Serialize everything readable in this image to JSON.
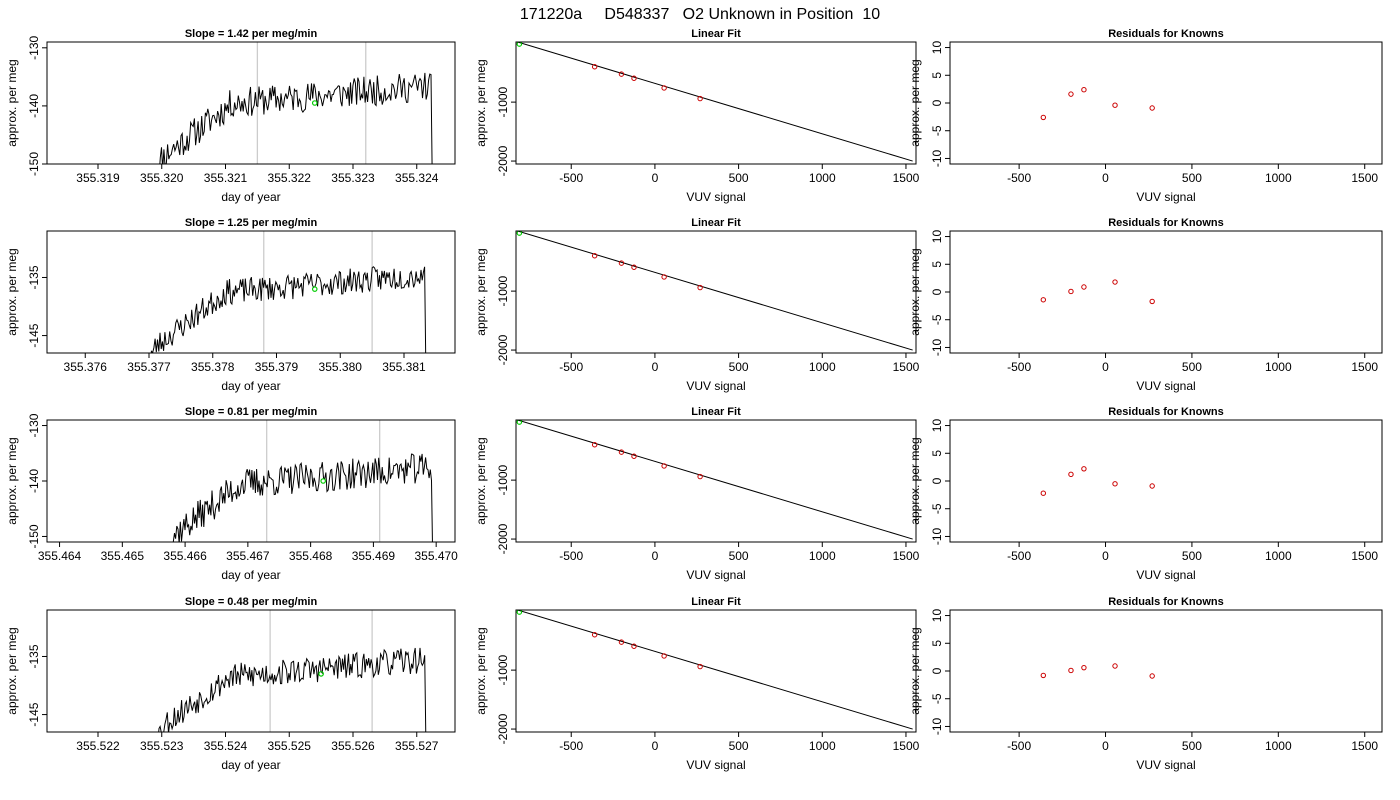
{
  "figure_title": "171220a     D548337   O2 Unknown in Position  10",
  "colors": {
    "axis": "#000000",
    "marker_line": "#cccccc",
    "unknown_point": "#00cc00",
    "known_point": "#cc0000",
    "series": "#000000"
  },
  "chart_data": [
    {
      "type": "line",
      "row": 1,
      "title": "Slope =  1.42  per meg/min",
      "xlabel": "day of year",
      "ylabel": "approx. per meg",
      "xlim": [
        355.3182,
        355.3246
      ],
      "ylim": [
        -150,
        -129
      ],
      "xticks": [
        "355.319",
        "355.320",
        "355.321",
        "355.322",
        "355.323",
        "355.324"
      ],
      "xtick_values": [
        355.319,
        355.32,
        355.321,
        355.322,
        355.323,
        355.324
      ],
      "yticks": [
        "-150",
        "-140",
        "-130"
      ],
      "ytick_values": [
        -150,
        -140,
        -130
      ],
      "vlines": [
        355.3215,
        355.3232
      ],
      "trace": {
        "x_start": 355.3199,
        "x_end": 355.3243,
        "y_start": -150,
        "level": -138,
        "noise": 2.6,
        "seed": 11
      },
      "unknown_point": {
        "x": 355.3224,
        "y": -139.5
      }
    },
    {
      "type": "scatter",
      "row": 1,
      "title": "Linear Fit",
      "xlabel": "VUV signal",
      "ylabel": "approx. per meg",
      "xlim": [
        -830,
        1560
      ],
      "ylim": [
        -2050,
        20
      ],
      "xticks": [
        "-500",
        "0",
        "500",
        "1000",
        "1500"
      ],
      "xtick_values": [
        -500,
        0,
        500,
        1000,
        1500
      ],
      "yticks": [
        "-2000",
        "-1000"
      ],
      "ytick_values": [
        -2000,
        -1000
      ],
      "fit_line": {
        "x": [
          -820,
          1540
        ],
        "y": [
          20,
          -2000
        ]
      },
      "unknown_point": {
        "x": -810,
        "y": -15
      },
      "known_points": {
        "x": [
          -360,
          -200,
          -125,
          55,
          270
        ],
        "y": [
          -400,
          -525,
          -595,
          -760,
          -940
        ]
      }
    },
    {
      "type": "scatter",
      "row": 1,
      "title": "Residuals for Knowns",
      "xlabel": "VUV signal",
      "ylabel": "approx. per meg",
      "xlim": [
        -900,
        1600
      ],
      "ylim": [
        -11,
        11
      ],
      "xticks": [
        "-500",
        "0",
        "500",
        "1000",
        "1500"
      ],
      "xtick_values": [
        -500,
        0,
        500,
        1000,
        1500
      ],
      "yticks": [
        "-10",
        "-5",
        "0",
        "5",
        "10"
      ],
      "ytick_values": [
        -10,
        -5,
        0,
        5,
        10
      ],
      "known_points": {
        "x": [
          -360,
          -200,
          -125,
          55,
          270
        ],
        "y": [
          -2.6,
          1.6,
          2.4,
          -0.4,
          -0.9
        ]
      }
    },
    {
      "type": "line",
      "row": 2,
      "title": "Slope =  1.25  per meg/min",
      "xlabel": "day of year",
      "ylabel": "approx. per meg",
      "xlim": [
        355.3754,
        355.3818
      ],
      "ylim": [
        -148,
        -127
      ],
      "xticks": [
        "355.376",
        "355.377",
        "355.378",
        "355.379",
        "355.380",
        "355.381"
      ],
      "xtick_values": [
        355.376,
        355.377,
        355.378,
        355.379,
        355.38,
        355.381
      ],
      "yticks": [
        "-145",
        "-135"
      ],
      "ytick_values": [
        -145,
        -135
      ],
      "vlines": [
        355.3788,
        355.3805
      ],
      "trace": {
        "x_start": 355.377,
        "x_end": 355.3814,
        "y_start": -148,
        "level": -136,
        "noise": 2.2,
        "seed": 23
      },
      "unknown_point": {
        "x": 355.3796,
        "y": -137
      }
    },
    {
      "type": "scatter",
      "row": 2,
      "title": "Linear Fit",
      "xlabel": "VUV signal",
      "ylabel": "approx. per meg",
      "xlim": [
        -830,
        1560
      ],
      "ylim": [
        -2050,
        20
      ],
      "xticks": [
        "-500",
        "0",
        "500",
        "1000",
        "1500"
      ],
      "xtick_values": [
        -500,
        0,
        500,
        1000,
        1500
      ],
      "yticks": [
        "-2000",
        "-1000"
      ],
      "ytick_values": [
        -2000,
        -1000
      ],
      "fit_line": {
        "x": [
          -820,
          1540
        ],
        "y": [
          20,
          -2000
        ]
      },
      "unknown_point": {
        "x": -810,
        "y": -15
      },
      "known_points": {
        "x": [
          -360,
          -200,
          -125,
          55,
          270
        ],
        "y": [
          -400,
          -525,
          -595,
          -760,
          -940
        ]
      }
    },
    {
      "type": "scatter",
      "row": 2,
      "title": "Residuals for Knowns",
      "xlabel": "VUV signal",
      "ylabel": "approx. per meg",
      "xlim": [
        -900,
        1600
      ],
      "ylim": [
        -11,
        11
      ],
      "xticks": [
        "-500",
        "0",
        "500",
        "1000",
        "1500"
      ],
      "xtick_values": [
        -500,
        0,
        500,
        1000,
        1500
      ],
      "yticks": [
        "-10",
        "-5",
        "0",
        "5",
        "10"
      ],
      "ytick_values": [
        -10,
        -5,
        0,
        5,
        10
      ],
      "known_points": {
        "x": [
          -360,
          -200,
          -125,
          55,
          270
        ],
        "y": [
          -1.4,
          0.1,
          0.9,
          1.8,
          -1.7
        ]
      }
    },
    {
      "type": "line",
      "row": 3,
      "title": "Slope =  0.81  per meg/min",
      "xlabel": "day of year",
      "ylabel": "approx. per meg",
      "xlim": [
        355.4638,
        355.4703
      ],
      "ylim": [
        -151,
        -129
      ],
      "xticks": [
        "355.464",
        "355.465",
        "355.466",
        "355.467",
        "355.468",
        "355.469",
        "355.470"
      ],
      "xtick_values": [
        355.464,
        355.465,
        355.466,
        355.467,
        355.468,
        355.469,
        355.47
      ],
      "yticks": [
        "-150",
        "-140",
        "-130"
      ],
      "ytick_values": [
        -150,
        -140,
        -130
      ],
      "vlines": [
        355.4673,
        355.4691
      ],
      "trace": {
        "x_start": 355.4657,
        "x_end": 355.47,
        "y_start": -151,
        "level": -139,
        "noise": 2.8,
        "seed": 37
      },
      "unknown_point": {
        "x": 355.4682,
        "y": -140
      }
    },
    {
      "type": "scatter",
      "row": 3,
      "title": "Linear Fit",
      "xlabel": "VUV signal",
      "ylabel": "approx. per meg",
      "xlim": [
        -830,
        1560
      ],
      "ylim": [
        -2050,
        20
      ],
      "xticks": [
        "-500",
        "0",
        "500",
        "1000",
        "1500"
      ],
      "xtick_values": [
        -500,
        0,
        500,
        1000,
        1500
      ],
      "yticks": [
        "-2000",
        "-1000"
      ],
      "ytick_values": [
        -2000,
        -1000
      ],
      "fit_line": {
        "x": [
          -820,
          1540
        ],
        "y": [
          20,
          -2000
        ]
      },
      "unknown_point": {
        "x": -810,
        "y": -15
      },
      "known_points": {
        "x": [
          -360,
          -200,
          -125,
          55,
          270
        ],
        "y": [
          -400,
          -525,
          -595,
          -760,
          -940
        ]
      }
    },
    {
      "type": "scatter",
      "row": 3,
      "title": "Residuals for Knowns",
      "xlabel": "VUV signal",
      "ylabel": "approx. per meg",
      "xlim": [
        -900,
        1600
      ],
      "ylim": [
        -11,
        11
      ],
      "xticks": [
        "-500",
        "0",
        "500",
        "1000",
        "1500"
      ],
      "xtick_values": [
        -500,
        0,
        500,
        1000,
        1500
      ],
      "yticks": [
        "-10",
        "-5",
        "0",
        "5",
        "10"
      ],
      "ytick_values": [
        -10,
        -5,
        0,
        5,
        10
      ],
      "known_points": {
        "x": [
          -360,
          -200,
          -125,
          55,
          270
        ],
        "y": [
          -2.2,
          1.2,
          2.2,
          -0.5,
          -0.9
        ]
      }
    },
    {
      "type": "line",
      "row": 4,
      "title": "Slope =  0.48  per meg/min",
      "xlabel": "day of year",
      "ylabel": "approx. per meg",
      "xlim": [
        355.5212,
        355.5276
      ],
      "ylim": [
        -148,
        -127
      ],
      "xticks": [
        "355.522",
        "355.523",
        "355.524",
        "355.525",
        "355.526",
        "355.527"
      ],
      "xtick_values": [
        355.522,
        355.523,
        355.524,
        355.525,
        355.526,
        355.527
      ],
      "yticks": [
        "-145",
        "-135"
      ],
      "ytick_values": [
        -145,
        -135
      ],
      "vlines": [
        355.5247,
        355.5263
      ],
      "trace": {
        "x_start": 355.5229,
        "x_end": 355.5272,
        "y_start": -148,
        "level": -137,
        "noise": 2.3,
        "seed": 53
      },
      "unknown_point": {
        "x": 355.5255,
        "y": -138
      }
    },
    {
      "type": "scatter",
      "row": 4,
      "title": "Linear Fit",
      "xlabel": "VUV signal",
      "ylabel": "approx. per meg",
      "xlim": [
        -830,
        1560
      ],
      "ylim": [
        -2050,
        20
      ],
      "xticks": [
        "-500",
        "0",
        "500",
        "1000",
        "1500"
      ],
      "xtick_values": [
        -500,
        0,
        500,
        1000,
        1500
      ],
      "yticks": [
        "-2000",
        "-1000"
      ],
      "ytick_values": [
        -2000,
        -1000
      ],
      "fit_line": {
        "x": [
          -820,
          1540
        ],
        "y": [
          20,
          -2000
        ]
      },
      "unknown_point": {
        "x": -810,
        "y": -15
      },
      "known_points": {
        "x": [
          -360,
          -200,
          -125,
          55,
          270
        ],
        "y": [
          -400,
          -525,
          -595,
          -760,
          -940
        ]
      }
    },
    {
      "type": "scatter",
      "row": 4,
      "title": "Residuals for Knowns",
      "xlabel": "VUV signal",
      "ylabel": "approx. per meg",
      "xlim": [
        -900,
        1600
      ],
      "ylim": [
        -11,
        11
      ],
      "xticks": [
        "-500",
        "0",
        "500",
        "1000",
        "1500"
      ],
      "xtick_values": [
        -500,
        0,
        500,
        1000,
        1500
      ],
      "yticks": [
        "-10",
        "-5",
        "0",
        "5",
        "10"
      ],
      "ytick_values": [
        -10,
        -5,
        0,
        5,
        10
      ],
      "known_points": {
        "x": [
          -360,
          -200,
          -125,
          55,
          270
        ],
        "y": [
          -0.8,
          0.1,
          0.6,
          0.9,
          -0.9
        ]
      }
    }
  ]
}
